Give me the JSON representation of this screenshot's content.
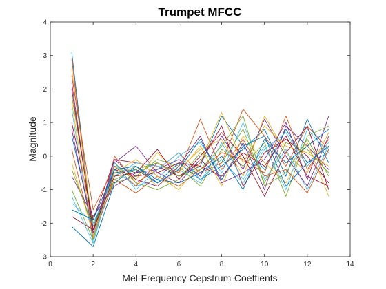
{
  "chart_data": {
    "type": "line",
    "title": "Trumpet MFCC",
    "xlabel": "Mel-Frequency Cepstrum-Coeffients",
    "ylabel": "Magnitude",
    "xlim": [
      0,
      14
    ],
    "ylim": [
      -3,
      4
    ],
    "xticks": [
      0,
      2,
      4,
      6,
      8,
      10,
      12,
      14
    ],
    "yticks": [
      -3,
      -2,
      -1,
      0,
      1,
      2,
      3,
      4
    ],
    "grid": false,
    "legend": "none",
    "x": [
      1,
      2,
      3,
      4,
      5,
      6,
      7,
      8,
      9,
      10,
      11,
      12,
      13
    ],
    "colors": [
      "#0072BD",
      "#D95319",
      "#EDB120",
      "#7E2F8E",
      "#77AC30",
      "#4DBEEE",
      "#A2142F"
    ],
    "series": [
      {
        "values": [
          3.1,
          -2.4,
          -0.3,
          -0.5,
          -0.2,
          -0.6,
          -0.3,
          1.2,
          0.3,
          -0.4,
          0.8,
          -0.2,
          0.1
        ]
      },
      {
        "values": [
          2.9,
          -2.5,
          0.0,
          -0.8,
          -0.4,
          0.1,
          -0.5,
          -0.2,
          1.4,
          0.6,
          -0.3,
          0.9,
          0.2
        ]
      },
      {
        "values": [
          2.6,
          -2.2,
          -0.6,
          -0.3,
          -0.9,
          -0.4,
          0.2,
          0.5,
          -0.6,
          1.2,
          0.1,
          -0.5,
          0.7
        ]
      },
      {
        "values": [
          2.2,
          -2.3,
          -0.2,
          0.3,
          -0.5,
          -0.8,
          -0.1,
          -0.7,
          0.4,
          -1.0,
          0.9,
          0.3,
          -0.4
        ]
      },
      {
        "values": [
          1.8,
          -2.0,
          -0.8,
          -0.6,
          -0.1,
          -0.3,
          -0.9,
          0.2,
          -0.3,
          0.4,
          -1.2,
          0.6,
          0.9
        ]
      },
      {
        "values": [
          1.4,
          -2.6,
          -0.4,
          -0.9,
          -0.7,
          0.0,
          0.4,
          -0.5,
          1.0,
          -0.7,
          0.2,
          -1.0,
          0.3
        ]
      },
      {
        "values": [
          1.0,
          -1.9,
          -0.1,
          -0.2,
          -0.3,
          -0.6,
          -0.2,
          0.9,
          -0.9,
          0.1,
          0.5,
          0.0,
          -0.8
        ]
      },
      {
        "values": [
          0.6,
          -2.1,
          -0.5,
          -0.4,
          -0.8,
          -0.2,
          -0.7,
          -0.3,
          0.2,
          0.8,
          -0.6,
          1.1,
          -0.2
        ]
      },
      {
        "values": [
          0.2,
          -2.4,
          -0.7,
          -1.1,
          -0.6,
          -0.9,
          -0.4,
          0.1,
          -0.1,
          -0.5,
          1.2,
          -0.4,
          0.5
        ]
      },
      {
        "values": [
          -0.2,
          -2.3,
          -0.3,
          -0.7,
          0.1,
          -0.5,
          0.3,
          -0.9,
          0.6,
          -0.2,
          -0.8,
          0.4,
          -1.2
        ]
      },
      {
        "values": [
          -0.6,
          -1.8,
          -0.9,
          -0.5,
          -0.4,
          -0.1,
          -0.6,
          0.6,
          -0.4,
          1.1,
          0.0,
          -0.9,
          0.6
        ]
      },
      {
        "values": [
          -1.0,
          -2.5,
          -0.2,
          -0.8,
          -1.0,
          -0.7,
          0.1,
          -0.2,
          0.8,
          -0.8,
          0.4,
          0.2,
          -0.5
        ]
      },
      {
        "values": [
          -1.4,
          -2.0,
          -0.6,
          -0.2,
          -0.3,
          -0.4,
          -0.8,
          0.4,
          -0.7,
          0.3,
          -1.0,
          0.8,
          0.1
        ]
      },
      {
        "values": [
          -1.8,
          -2.2,
          -0.4,
          -0.6,
          -0.5,
          -0.2,
          -0.3,
          -0.6,
          0.1,
          -0.3,
          0.6,
          -0.6,
          -0.9
        ]
      },
      {
        "values": [
          -2.1,
          -2.7,
          -0.8,
          -0.3,
          -0.7,
          -0.8,
          -0.5,
          0.0,
          -1.0,
          0.5,
          -0.2,
          0.3,
          0.8
        ]
      },
      {
        "values": [
          2.4,
          -1.6,
          -0.3,
          -0.9,
          -0.2,
          -0.5,
          1.1,
          -0.4,
          0.5,
          -0.6,
          -0.4,
          -1.1,
          0.2
        ]
      },
      {
        "values": [
          1.6,
          -2.4,
          -0.5,
          -0.1,
          -0.6,
          -1.0,
          -0.2,
          1.3,
          -0.2,
          0.9,
          0.3,
          0.1,
          -0.3
        ]
      },
      {
        "values": [
          0.8,
          -2.3,
          -0.1,
          -0.7,
          -0.9,
          -0.3,
          0.6,
          -0.8,
          -0.5,
          -0.1,
          1.0,
          -0.7,
          1.2
        ]
      },
      {
        "values": [
          -0.4,
          -2.1,
          -0.7,
          -0.4,
          -0.2,
          -0.6,
          -0.4,
          0.3,
          1.2,
          -0.9,
          -0.5,
          0.5,
          -0.6
        ]
      },
      {
        "values": [
          -1.2,
          -2.6,
          -0.2,
          -1.0,
          -0.4,
          0.1,
          -0.7,
          -0.1,
          -0.8,
          0.2,
          0.7,
          -0.3,
          0.4
        ]
      },
      {
        "values": [
          2.0,
          -2.2,
          -0.6,
          -0.5,
          0.2,
          -0.7,
          0.0,
          0.7,
          0.0,
          -1.2,
          0.1,
          0.9,
          -1.0
        ]
      },
      {
        "values": [
          -1.6,
          -1.9,
          -0.4,
          -0.3,
          -0.8,
          -0.4,
          0.5,
          -0.7,
          0.3,
          0.6,
          -0.9,
          -0.2,
          0.3
        ]
      }
    ]
  }
}
